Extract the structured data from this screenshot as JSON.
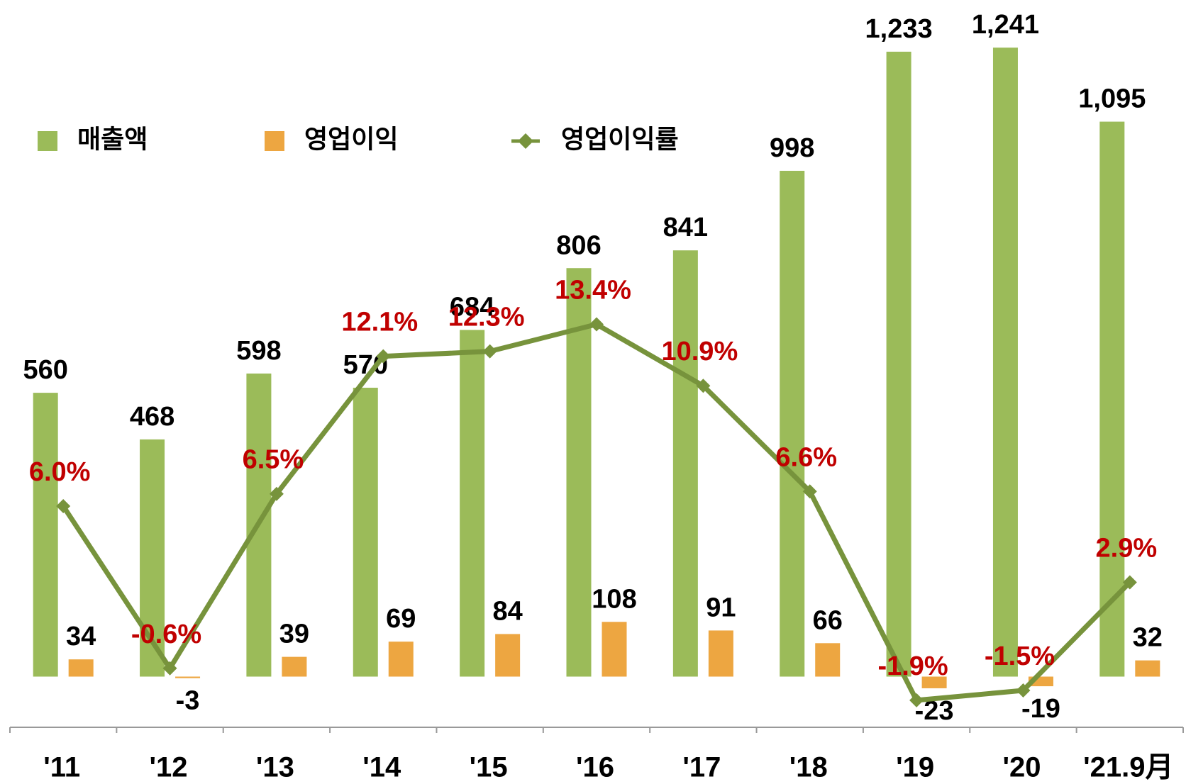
{
  "chart_data": {
    "type": "bar",
    "categories": [
      "'11",
      "'12",
      "'13",
      "'14",
      "'15",
      "'16",
      "'17",
      "'18",
      "'19",
      "'20",
      "'21.9月"
    ],
    "series": [
      {
        "name": "매출액",
        "type": "bar",
        "axis": "y",
        "color": "#9bbb59",
        "values": [
          560,
          468,
          598,
          570,
          684,
          806,
          841,
          998,
          1233,
          1241,
          1095
        ],
        "value_labels": [
          "560",
          "468",
          "598",
          "570",
          "684",
          "806",
          "841",
          "998",
          "1,233",
          "1,241",
          "1,095"
        ]
      },
      {
        "name": "영업이익",
        "type": "bar",
        "axis": "y",
        "color": "#eda641",
        "values": [
          34,
          -3,
          39,
          69,
          84,
          108,
          91,
          66,
          -23,
          -19,
          32
        ]
      },
      {
        "name": "영업이익률",
        "type": "line",
        "axis": "y2",
        "color": "#77933c",
        "values": [
          6.0,
          -0.6,
          6.5,
          12.1,
          12.3,
          13.4,
          10.9,
          6.6,
          -1.9,
          -1.5,
          2.9
        ],
        "value_labels": [
          "6.0%",
          "-0.6%",
          "6.5%",
          "12.1%",
          "12.3%",
          "13.4%",
          "10.9%",
          "6.6%",
          "-1.9%",
          "-1.5%",
          "2.9%"
        ]
      }
    ],
    "ylim": [
      -100,
      1335
    ],
    "y2lim": [
      -3,
      26.6
    ],
    "legend": "top-left"
  }
}
